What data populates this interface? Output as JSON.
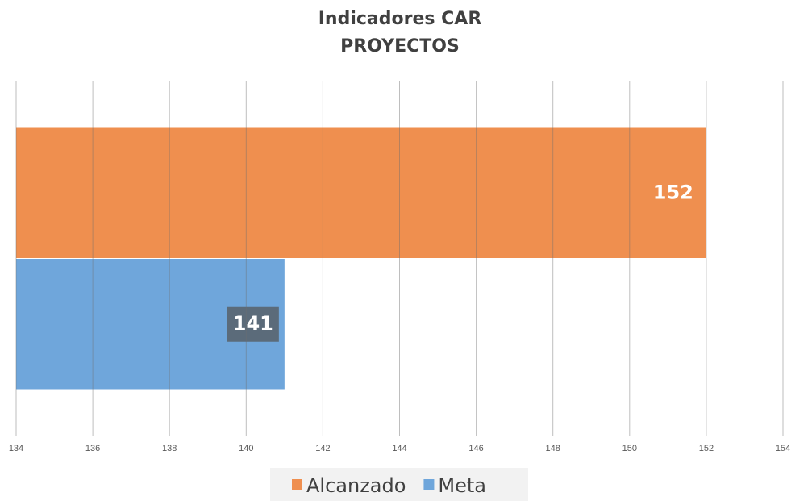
{
  "chart_data": {
    "type": "bar",
    "orientation": "horizontal",
    "title": "Indicadores CAR",
    "subtitle": "PROYECTOS",
    "series": [
      {
        "name": "Alcanzado",
        "color": "#ef8f4f",
        "values": [
          152
        ]
      },
      {
        "name": "Meta",
        "color": "#6fa6db",
        "values": [
          141
        ]
      }
    ],
    "xlim": [
      134,
      154
    ],
    "xticks": [
      134,
      136,
      138,
      140,
      142,
      144,
      146,
      148,
      150,
      152,
      154
    ],
    "grid": true,
    "legend": "bottom"
  }
}
